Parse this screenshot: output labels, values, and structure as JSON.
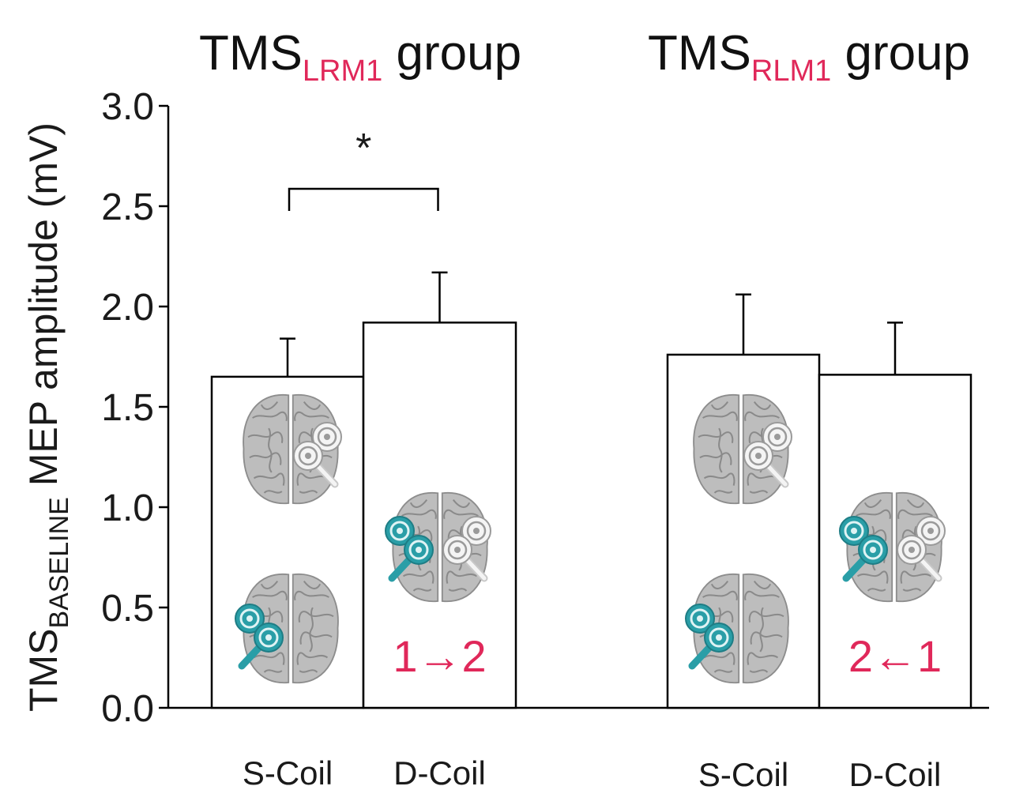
{
  "chart_data": {
    "type": "bar",
    "ylabel": {
      "prefix": "TMS",
      "subscript": "BASELINE",
      "suffix": " MEP amplitude (mV)"
    },
    "ylim": [
      0,
      3.0
    ],
    "yticks": [
      "0.0",
      "0.5",
      "1.0",
      "1.5",
      "2.0",
      "2.5",
      "3.0"
    ],
    "grid": false,
    "groups": [
      {
        "title": "TMS",
        "title_subscript": "LRM1",
        "title_suffix": " group",
        "categories": [
          "S-Coil",
          "D-Coil"
        ],
        "values": [
          1.65,
          1.92
        ],
        "errors": [
          0.19,
          0.25
        ],
        "annotations": [
          "",
          "1→2"
        ],
        "significance": {
          "between": [
            0,
            1
          ],
          "label": "*"
        }
      },
      {
        "title": "TMS",
        "title_subscript": "RLM1",
        "title_suffix": " group",
        "categories": [
          "S-Coil",
          "D-Coil"
        ],
        "values": [
          1.76,
          1.66
        ],
        "errors": [
          0.3,
          0.26
        ],
        "annotations": [
          "",
          "2←1"
        ],
        "significance": null
      }
    ],
    "colors": {
      "bar_fill": "#ffffff",
      "bar_edge": "#000000",
      "subscript_accent": "#e0285a",
      "active_coil": "#2a9ea7",
      "inactive_coil": "#f2f2f2",
      "brain": "#b4b4b4"
    },
    "icons": [
      "brain-icon",
      "coil-icon"
    ]
  }
}
